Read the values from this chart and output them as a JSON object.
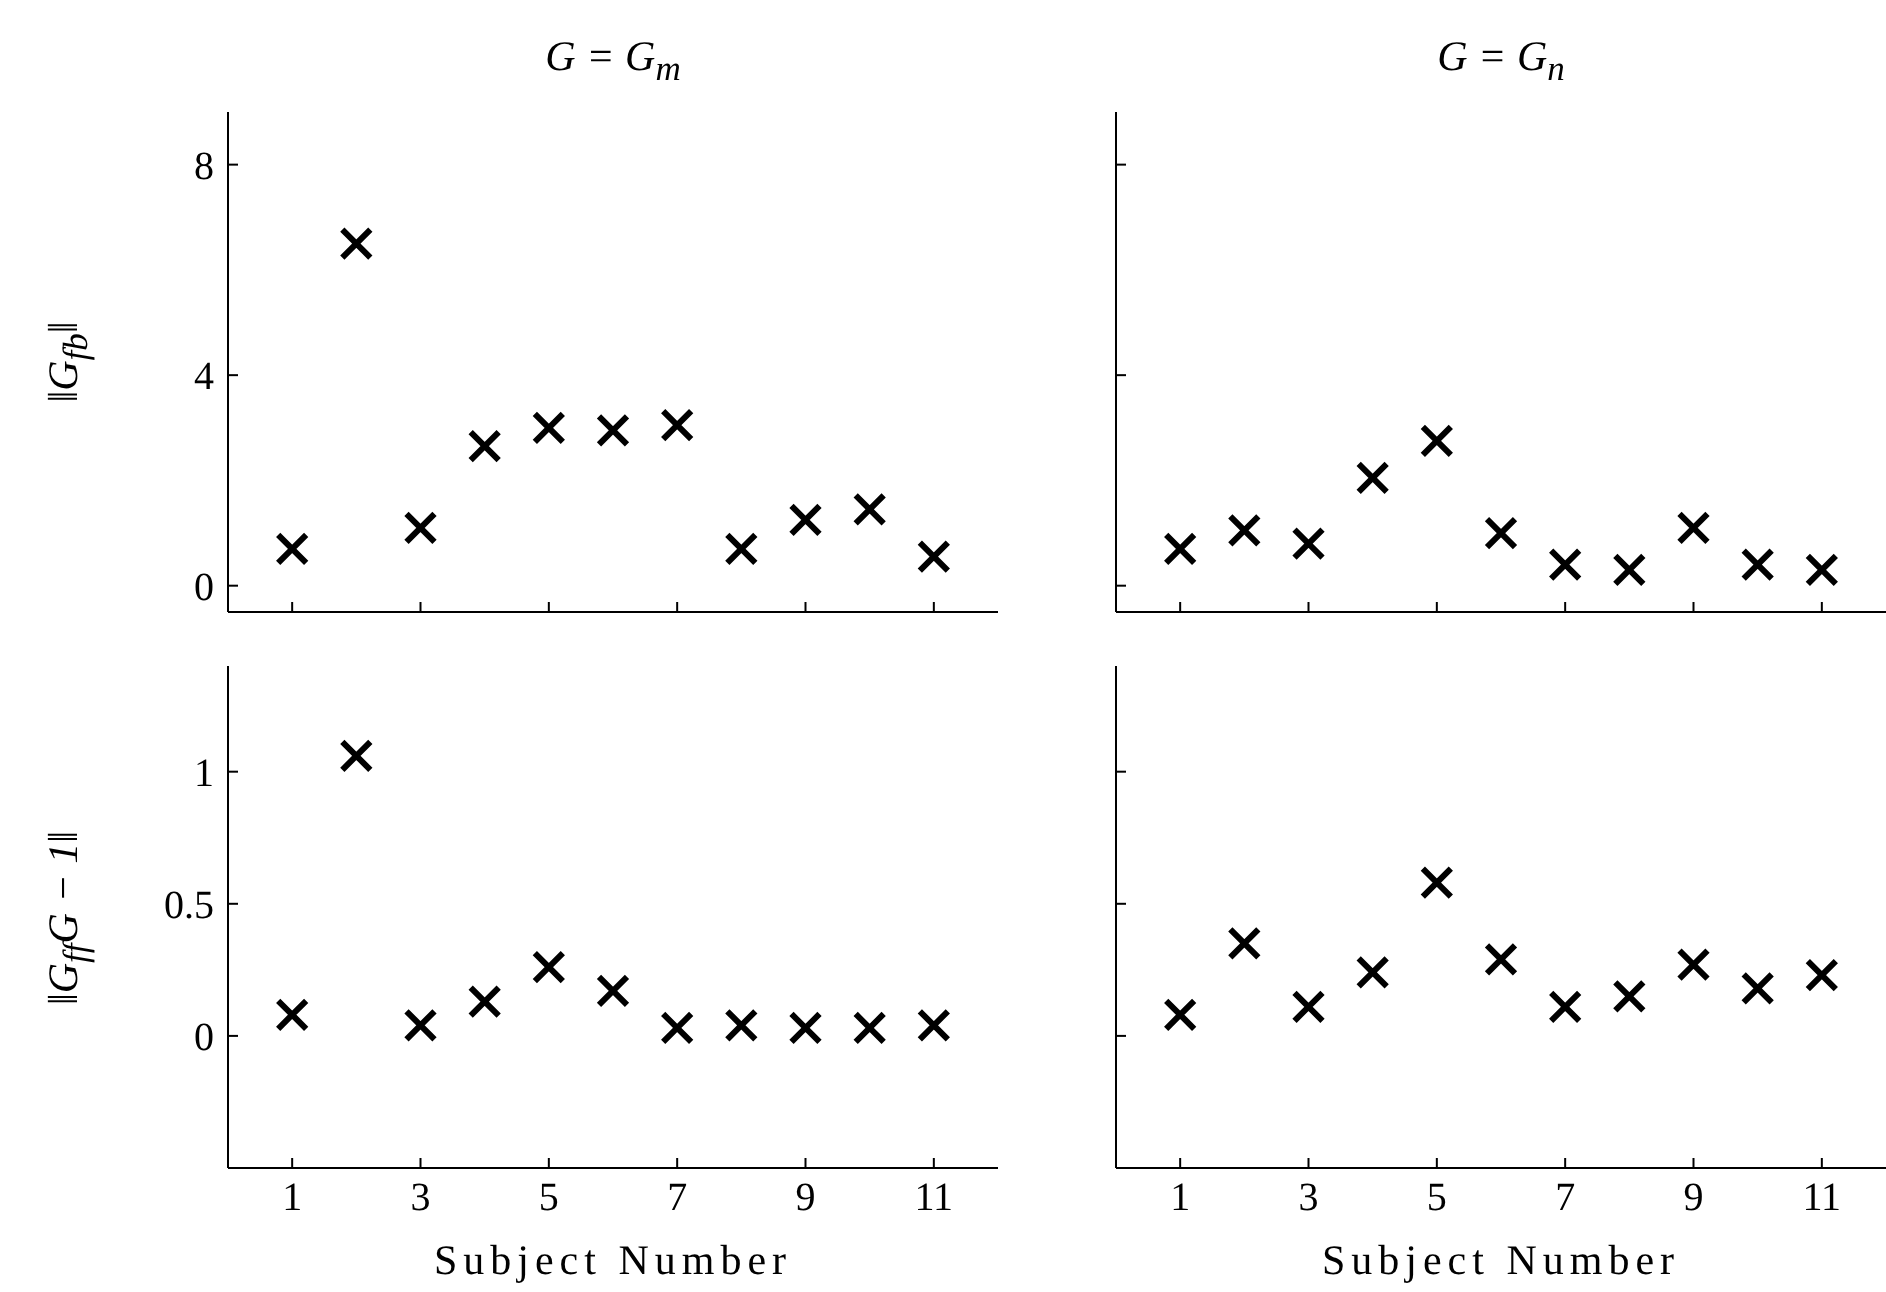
{
  "chart_data": [
    {
      "type": "scatter",
      "title": "G = G$_{m}$",
      "ylabel": "‖G$_{fb}$‖",
      "x": [
        1,
        2,
        3,
        4,
        5,
        6,
        7,
        8,
        9,
        10,
        11
      ],
      "series": [
        {
          "color": "#000000",
          "values": [
            0.7,
            6.5,
            1.1,
            2.65,
            3.0,
            2.95,
            3.05,
            0.7,
            1.25,
            1.45,
            0.55
          ]
        }
      ],
      "xlim": [
        0,
        12
      ],
      "xticks": [
        1,
        3,
        5,
        7,
        9,
        11
      ],
      "ylim": [
        -0.5,
        9
      ],
      "yticks": [
        0,
        4,
        8
      ],
      "marker": "cross",
      "tick_labels": "y"
    },
    {
      "type": "scatter",
      "title": "G = G$_{n}$",
      "x": [
        1,
        2,
        3,
        4,
        5,
        6,
        7,
        8,
        9,
        10,
        11
      ],
      "series": [
        {
          "color": "#000000",
          "values": [
            0.7,
            1.05,
            0.8,
            2.05,
            2.75,
            1.0,
            0.4,
            0.3,
            1.1,
            0.4,
            0.3
          ]
        }
      ],
      "xlim": [
        0,
        12
      ],
      "xticks": [
        1,
        3,
        5,
        7,
        9,
        11
      ],
      "ylim": [
        -0.5,
        9
      ],
      "yticks": [
        0,
        4,
        8
      ],
      "marker": "cross",
      "tick_labels": false
    },
    {
      "type": "scatter",
      "xlabel": "Subject Number",
      "ylabel": "‖G$_{ff}$G − 1‖",
      "x": [
        1,
        2,
        3,
        4,
        5,
        6,
        7,
        8,
        9,
        10,
        11
      ],
      "series": [
        {
          "color": "#000000",
          "values": [
            0.08,
            1.06,
            0.04,
            0.13,
            0.26,
            0.17,
            0.03,
            0.04,
            0.03,
            0.03,
            0.04
          ]
        }
      ],
      "xlim": [
        0,
        12
      ],
      "xticks": [
        1,
        3,
        5,
        7,
        9,
        11
      ],
      "ylim": [
        -0.5,
        1.4
      ],
      "yticks": [
        0,
        0.5,
        1
      ],
      "marker": "cross"
    },
    {
      "type": "scatter",
      "xlabel": "Subject Number",
      "x": [
        1,
        2,
        3,
        4,
        5,
        6,
        7,
        8,
        9,
        10,
        11
      ],
      "series": [
        {
          "color": "#000000",
          "values": [
            0.08,
            0.35,
            0.11,
            0.24,
            0.58,
            0.29,
            0.11,
            0.15,
            0.27,
            0.18,
            0.23
          ]
        }
      ],
      "xlim": [
        0,
        12
      ],
      "xticks": [
        1,
        3,
        5,
        7,
        9,
        11
      ],
      "ylim": [
        -0.5,
        1.4
      ],
      "yticks": [
        0,
        0.5,
        1
      ],
      "marker": "cross",
      "tick_labels": "x"
    }
  ]
}
